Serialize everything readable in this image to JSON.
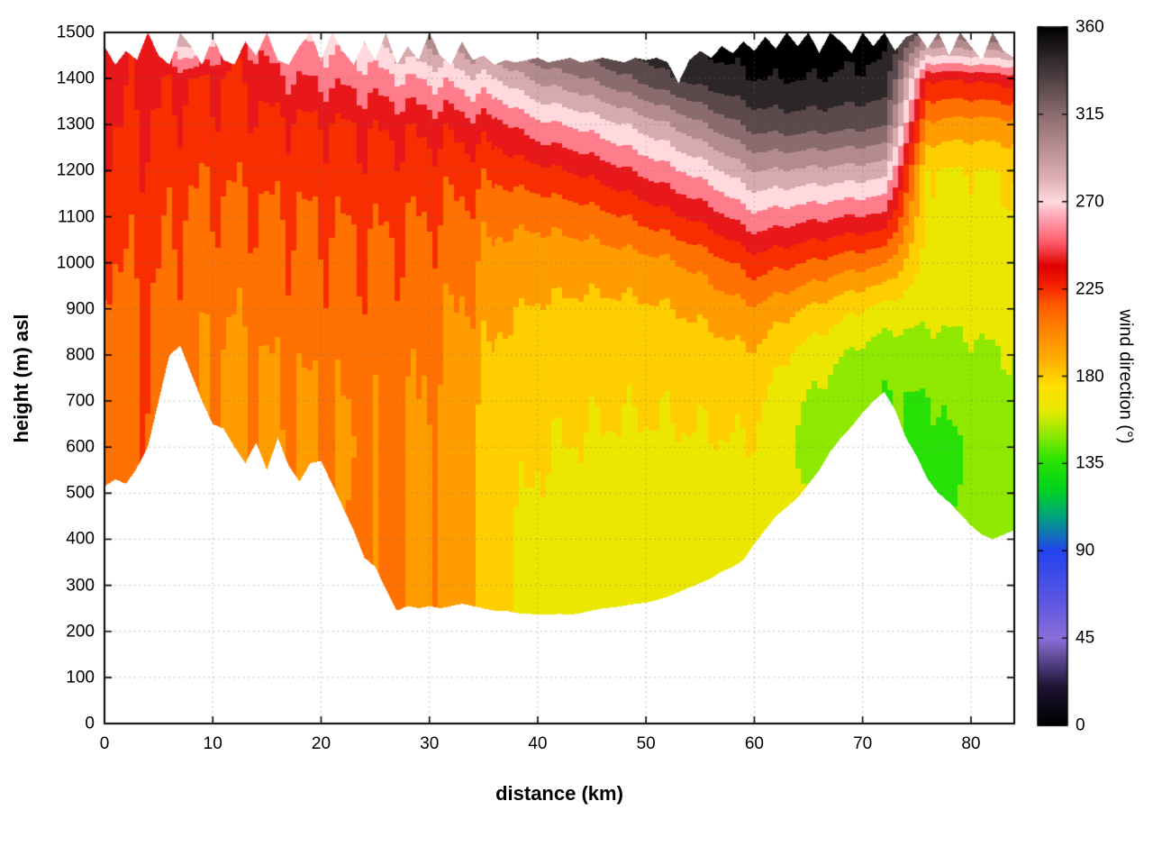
{
  "chart_data": {
    "type": "heatmap",
    "title": "",
    "xlabel": "distance (km)",
    "ylabel": "height (m) asl",
    "xlim": [
      0,
      84
    ],
    "ylim": [
      0,
      1500
    ],
    "xticks": [
      0,
      10,
      20,
      30,
      40,
      50,
      60,
      70,
      80
    ],
    "yticks": [
      0,
      100,
      200,
      300,
      400,
      500,
      600,
      700,
      800,
      900,
      1000,
      1100,
      1200,
      1300,
      1400,
      1500
    ],
    "grid": true,
    "contour_interval_deg": 15,
    "colorbar": {
      "label": "wind direction (°)",
      "min": 0,
      "max": 360,
      "ticks": [
        0,
        45,
        90,
        135,
        180,
        225,
        270,
        315,
        360
      ]
    },
    "palette_stops": [
      [
        0,
        "#000000"
      ],
      [
        20,
        "#1d1433"
      ],
      [
        45,
        "#8a6fd8"
      ],
      [
        65,
        "#5a56e2"
      ],
      [
        90,
        "#2343ef"
      ],
      [
        108,
        "#00a47c"
      ],
      [
        122,
        "#00d41e"
      ],
      [
        138,
        "#30e300"
      ],
      [
        150,
        "#8fe800"
      ],
      [
        162,
        "#e6ea00"
      ],
      [
        175,
        "#ffdf00"
      ],
      [
        190,
        "#ffab00"
      ],
      [
        204,
        "#ff8400"
      ],
      [
        217,
        "#ff5b00"
      ],
      [
        227,
        "#f62100"
      ],
      [
        237,
        "#e00000"
      ],
      [
        249,
        "#ff5a68"
      ],
      [
        261,
        "#ff9fae"
      ],
      [
        270,
        "#ffd9de"
      ],
      [
        283,
        "#dcaeb1"
      ],
      [
        297,
        "#bb9193"
      ],
      [
        314,
        "#8e6e70"
      ],
      [
        331,
        "#584749"
      ],
      [
        346,
        "#2a2426"
      ],
      [
        360,
        "#000000"
      ]
    ],
    "field": {
      "x_km": [
        0,
        4,
        8,
        12,
        16,
        20,
        24,
        28,
        32,
        36,
        40,
        44,
        48,
        52,
        56,
        60,
        64,
        68,
        72,
        76,
        80,
        84
      ],
      "y_m": [
        0,
        100,
        200,
        300,
        400,
        500,
        600,
        700,
        800,
        900,
        1000,
        1100,
        1200,
        1300,
        1400,
        1500
      ],
      "wind_direction_deg": [
        [
          205,
          205,
          205,
          205,
          205,
          204,
          203,
          205,
          210,
          212,
          216,
          222,
          228,
          232,
          235,
          230
        ],
        [
          212,
          212,
          212,
          212,
          212,
          212,
          212,
          213,
          215,
          216,
          219,
          223,
          227,
          231,
          234,
          240
        ],
        [
          204,
          204,
          204,
          204,
          204,
          204,
          204,
          203,
          204,
          206,
          209,
          213,
          219,
          226,
          232,
          300
        ],
        [
          200,
          200,
          200,
          200,
          200,
          199,
          198,
          198,
          200,
          204,
          208,
          214,
          220,
          226,
          231,
          238
        ],
        [
          205,
          205,
          205,
          205,
          204,
          203,
          202,
          204,
          206,
          210,
          214,
          218,
          224,
          230,
          246,
          266
        ],
        [
          208,
          208,
          208,
          208,
          206,
          205,
          204,
          205,
          208,
          212,
          216,
          220,
          226,
          232,
          252,
          272
        ],
        [
          210,
          210,
          210,
          209,
          208,
          207,
          206,
          207,
          210,
          213,
          217,
          222,
          228,
          236,
          256,
          278
        ],
        [
          207,
          207,
          206,
          205,
          205,
          204,
          204,
          205,
          207,
          210,
          214,
          219,
          226,
          236,
          262,
          302
        ],
        [
          195,
          195,
          193,
          192,
          192,
          193,
          194,
          196,
          199,
          203,
          208,
          214,
          222,
          236,
          266,
          306
        ],
        [
          178,
          178,
          176,
          175,
          175,
          176,
          178,
          181,
          185,
          190,
          197,
          206,
          221,
          241,
          276,
          321
        ],
        [
          172,
          172,
          171,
          170,
          170,
          171,
          173,
          176,
          180,
          186,
          194,
          206,
          228,
          258,
          296,
          336
        ],
        [
          170,
          170,
          170,
          169,
          169,
          170,
          172,
          175,
          179,
          185,
          194,
          210,
          235,
          266,
          306,
          346
        ],
        [
          170,
          170,
          169,
          169,
          169,
          170,
          171,
          174,
          178,
          185,
          196,
          218,
          246,
          278,
          321,
          351
        ],
        [
          169,
          169,
          169,
          168,
          168,
          169,
          171,
          174,
          179,
          187,
          200,
          228,
          258,
          292,
          336,
          356
        ],
        [
          168,
          168,
          168,
          168,
          168,
          169,
          171,
          175,
          181,
          192,
          210,
          240,
          272,
          310,
          346,
          359
        ],
        [
          167,
          167,
          167,
          167,
          167,
          168,
          171,
          176,
          185,
          200,
          225,
          258,
          292,
          328,
          352,
          360
        ],
        [
          164,
          164,
          163,
          162,
          160,
          158,
          156,
          158,
          168,
          188,
          218,
          252,
          290,
          330,
          353,
          360
        ],
        [
          160,
          160,
          159,
          158,
          156,
          153,
          150,
          150,
          158,
          178,
          210,
          248,
          288,
          328,
          351,
          360
        ],
        [
          155,
          155,
          154,
          152,
          150,
          147,
          144,
          142,
          148,
          168,
          205,
          245,
          285,
          325,
          350,
          358
        ],
        [
          148,
          148,
          146,
          144,
          141,
          139,
          138,
          142,
          152,
          162,
          168,
          170,
          172,
          200,
          235,
          320
        ],
        [
          155,
          155,
          153,
          150,
          148,
          146,
          145,
          148,
          155,
          162,
          166,
          169,
          172,
          196,
          235,
          325
        ],
        [
          160,
          160,
          158,
          156,
          154,
          152,
          151,
          153,
          158,
          163,
          167,
          170,
          174,
          198,
          240,
          330
        ]
      ]
    },
    "terrain_profile": {
      "x_km_step": 1,
      "height_m": [
        515,
        530,
        520,
        555,
        600,
        700,
        800,
        820,
        760,
        700,
        650,
        640,
        600,
        565,
        610,
        550,
        620,
        560,
        525,
        565,
        570,
        520,
        470,
        420,
        360,
        340,
        290,
        245,
        255,
        250,
        255,
        250,
        255,
        260,
        255,
        250,
        245,
        245,
        240,
        238,
        237,
        236,
        238,
        236,
        240,
        245,
        250,
        252,
        256,
        260,
        262,
        268,
        275,
        285,
        295,
        305,
        315,
        330,
        340,
        355,
        390,
        420,
        450,
        470,
        490,
        520,
        550,
        590,
        620,
        645,
        675,
        700,
        720,
        680,
        620,
        580,
        530,
        500,
        480,
        455,
        430,
        410,
        400,
        410,
        420
      ]
    },
    "top_boundary_m": [
      1470,
      1430,
      1460,
      1440,
      1500,
      1450,
      1430,
      1500,
      1470,
      1430,
      1490,
      1440,
      1430,
      1480,
      1450,
      1500,
      1440,
      1430,
      1470,
      1500,
      1440,
      1500,
      1460,
      1430,
      1480,
      1440,
      1500,
      1430,
      1470,
      1440,
      1500,
      1450,
      1430,
      1480,
      1440,
      1450,
      1430,
      1440,
      1435,
      1440,
      1445,
      1435,
      1440,
      1445,
      1435,
      1440,
      1445,
      1440,
      1435,
      1445,
      1440,
      1445,
      1435,
      1390,
      1440,
      1460,
      1445,
      1470,
      1455,
      1480,
      1460,
      1490,
      1465,
      1500,
      1470,
      1500,
      1455,
      1500,
      1480,
      1455,
      1500,
      1470,
      1500,
      1460,
      1490,
      1500,
      1465,
      1500,
      1450,
      1500,
      1470,
      1440,
      1500,
      1460,
      1445
    ]
  }
}
